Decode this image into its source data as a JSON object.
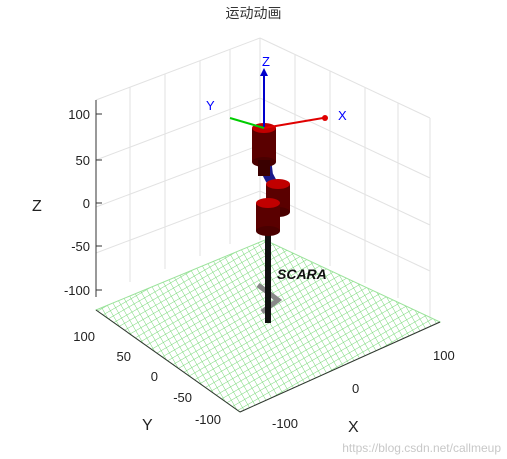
{
  "figure": {
    "title": "运动动画",
    "robot_label": "SCARA",
    "watermark": "https://blog.csdn.net/callmeup"
  },
  "axes": {
    "zlabel": "Z",
    "ylabel": "Y",
    "xlabel": "X",
    "z_ticks": [
      "100",
      "50",
      "0",
      "-50",
      "-100"
    ],
    "y_ticks": [
      "100",
      "50",
      "0",
      "-50",
      "-100"
    ],
    "x_ticks": [
      "-100",
      "0",
      "100"
    ]
  },
  "frame": {
    "x_label": "X",
    "y_label": "Y",
    "z_label": "Z",
    "x_color": "#e00000",
    "y_color": "#00cc00",
    "z_color": "#0000cc",
    "label_color": "#0000ff"
  },
  "colors": {
    "floor": "#7fdc7f",
    "link": "#5a0000",
    "joint_top": "#c00000",
    "shaft": "#111111",
    "base": "#888888"
  }
}
